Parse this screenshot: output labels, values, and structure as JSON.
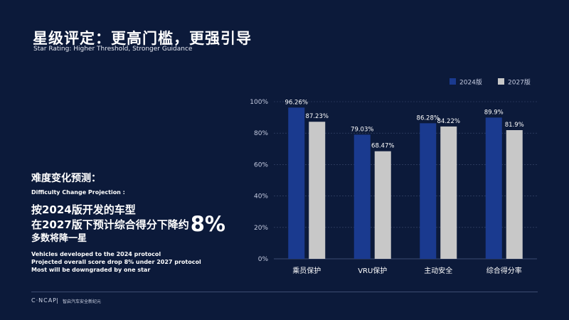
{
  "header": {
    "title": "星级评定：更高门槛，更强引导",
    "subtitle": "Star Rating: Higher Threshold, Stronger Guidance"
  },
  "left": {
    "heading": "难度变化预测：",
    "heading_en": "Difficulty Change Projection :",
    "line1": "按2024版开发的车型",
    "line2": "在2027版下预计综合得分下降约",
    "highlight": "8%",
    "line3": "多数将降一星",
    "en1": "Vehicles developed to the 2024 protocol",
    "en2": "Projected overall score drop 8% under 2027 protocol",
    "en3": "Most will be downgraded by one star"
  },
  "footer": {
    "logo": "C·NCAP",
    "separator": "|",
    "tagline": "智启汽车安全新纪元"
  },
  "colors": {
    "background": "#0c1a3a",
    "series_2024": "#1a3a8f",
    "series_2027": "#c8c8c8",
    "axis_text": "#c5cbe0",
    "gridline": "#3d4c72"
  },
  "chart_data": {
    "type": "bar",
    "categories": [
      "乘员保护",
      "VRU保护",
      "主动安全",
      "综合得分率"
    ],
    "series": [
      {
        "name": "2024版",
        "values": [
          96.26,
          79.03,
          86.28,
          89.9
        ],
        "labels": [
          "96.26%",
          "79.03%",
          "86.28%",
          "89.9%"
        ]
      },
      {
        "name": "2027版",
        "values": [
          87.23,
          68.47,
          84.22,
          81.9
        ],
        "labels": [
          "87.23%",
          "68.47%",
          "84.22%",
          "81.9%"
        ]
      }
    ],
    "yticks": [
      "0%",
      "20%",
      "40%",
      "60%",
      "80%",
      "100%"
    ],
    "ylim": [
      0,
      100
    ],
    "legend_position": "top-right",
    "grid": true
  }
}
